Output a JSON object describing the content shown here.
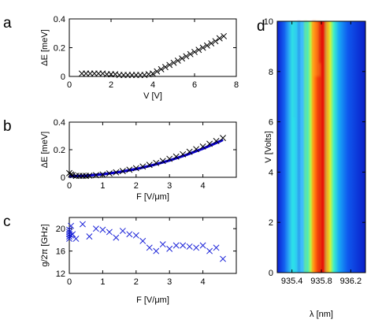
{
  "chart_data": [
    {
      "panel": "a",
      "type": "scatter",
      "xlabel": "V [V]",
      "ylabel": "ΔE [meV]",
      "xlim": [
        0,
        8
      ],
      "ylim": [
        0,
        0.4
      ],
      "xticks": [
        0,
        2,
        4,
        6,
        8
      ],
      "yticks": [
        0,
        0.2,
        0.4
      ],
      "marker": "x",
      "color": "#000000",
      "series": [
        {
          "x": [
            0.6,
            0.8,
            1.0,
            1.2,
            1.4,
            1.6,
            1.8,
            2.0,
            2.2,
            2.4,
            2.6,
            2.8,
            3.0,
            3.2,
            3.4,
            3.6,
            3.8,
            4.0,
            4.2,
            4.4,
            4.6,
            4.8,
            5.0,
            5.2,
            5.4,
            5.6,
            5.8,
            6.0,
            6.2,
            6.4,
            6.6,
            6.8,
            7.0,
            7.2,
            7.4
          ],
          "y": [
            0.02,
            0.02,
            0.02,
            0.02,
            0.02,
            0.02,
            0.015,
            0.015,
            0.015,
            0.01,
            0.01,
            0.01,
            0.01,
            0.01,
            0.01,
            0.01,
            0.015,
            0.02,
            0.035,
            0.05,
            0.065,
            0.08,
            0.095,
            0.11,
            0.125,
            0.14,
            0.155,
            0.17,
            0.185,
            0.2,
            0.215,
            0.23,
            0.245,
            0.265,
            0.28
          ]
        }
      ]
    },
    {
      "panel": "b",
      "type": "scatter",
      "xlabel": "F [V/μm]",
      "ylabel": "ΔE [meV]",
      "xlim": [
        0,
        5
      ],
      "ylim": [
        0,
        0.4
      ],
      "xticks": [
        0,
        1,
        2,
        3,
        4
      ],
      "yticks": [
        0,
        0.2,
        0.4
      ],
      "marker": "x",
      "color": "#000000",
      "series": [
        {
          "x": [
            0.0,
            0.05,
            0.1,
            0.2,
            0.3,
            0.4,
            0.5,
            0.6,
            0.8,
            1.0,
            1.2,
            1.4,
            1.6,
            1.8,
            2.0,
            2.2,
            2.4,
            2.6,
            2.8,
            3.0,
            3.2,
            3.4,
            3.6,
            3.8,
            4.0,
            4.2,
            4.4,
            4.6
          ],
          "y": [
            0.03,
            0.02,
            0.015,
            0.01,
            0.01,
            0.01,
            0.01,
            0.012,
            0.015,
            0.02,
            0.028,
            0.036,
            0.045,
            0.055,
            0.066,
            0.078,
            0.09,
            0.104,
            0.118,
            0.134,
            0.15,
            0.167,
            0.185,
            0.204,
            0.223,
            0.243,
            0.263,
            0.285
          ]
        }
      ],
      "fit": {
        "color": "#0a00c8",
        "x": [
          0.0,
          0.5,
          1.0,
          1.5,
          2.0,
          2.5,
          3.0,
          3.5,
          4.0,
          4.5,
          4.6
        ],
        "y": [
          0.008,
          0.012,
          0.022,
          0.038,
          0.06,
          0.088,
          0.122,
          0.162,
          0.208,
          0.26,
          0.272
        ]
      }
    },
    {
      "panel": "c",
      "type": "scatter",
      "xlabel": "F [V/μm]",
      "ylabel": "g/2π [GHz]",
      "xlim": [
        0,
        5
      ],
      "ylim": [
        12,
        22
      ],
      "xticks": [
        0,
        1,
        2,
        3,
        4
      ],
      "yticks": [
        12,
        16,
        20
      ],
      "marker": "x",
      "color": "#1a22d8",
      "series": [
        {
          "x": [
            0.0,
            0.0,
            0.0,
            0.0,
            0.0,
            0.05,
            0.05,
            0.1,
            0.2,
            0.4,
            0.6,
            0.8,
            1.0,
            1.2,
            1.4,
            1.6,
            1.8,
            2.0,
            2.2,
            2.4,
            2.6,
            2.8,
            3.0,
            3.2,
            3.4,
            3.6,
            3.8,
            4.0,
            4.2,
            4.4,
            4.6
          ],
          "y": [
            18.2,
            18.6,
            19.0,
            19.4,
            19.8,
            18.8,
            20.5,
            19.0,
            18.2,
            20.8,
            18.6,
            20.0,
            19.8,
            19.4,
            18.4,
            19.6,
            19.0,
            18.8,
            17.8,
            16.6,
            16.0,
            17.2,
            16.4,
            17.0,
            17.0,
            16.8,
            16.6,
            17.0,
            16.0,
            16.6,
            14.6
          ]
        }
      ]
    },
    {
      "panel": "d",
      "type": "heatmap",
      "xlabel": "λ [nm]",
      "ylabel": "V [Volts]",
      "xlim": [
        935.2,
        936.4
      ],
      "ylim": [
        0,
        10
      ],
      "xticks": [
        935.4,
        935.8,
        936.2
      ],
      "yticks": [
        0,
        2,
        4,
        6,
        8,
        10
      ],
      "colormap": "jet"
    }
  ],
  "figure": {
    "panel_labels": [
      "a",
      "b",
      "c",
      "d"
    ]
  }
}
